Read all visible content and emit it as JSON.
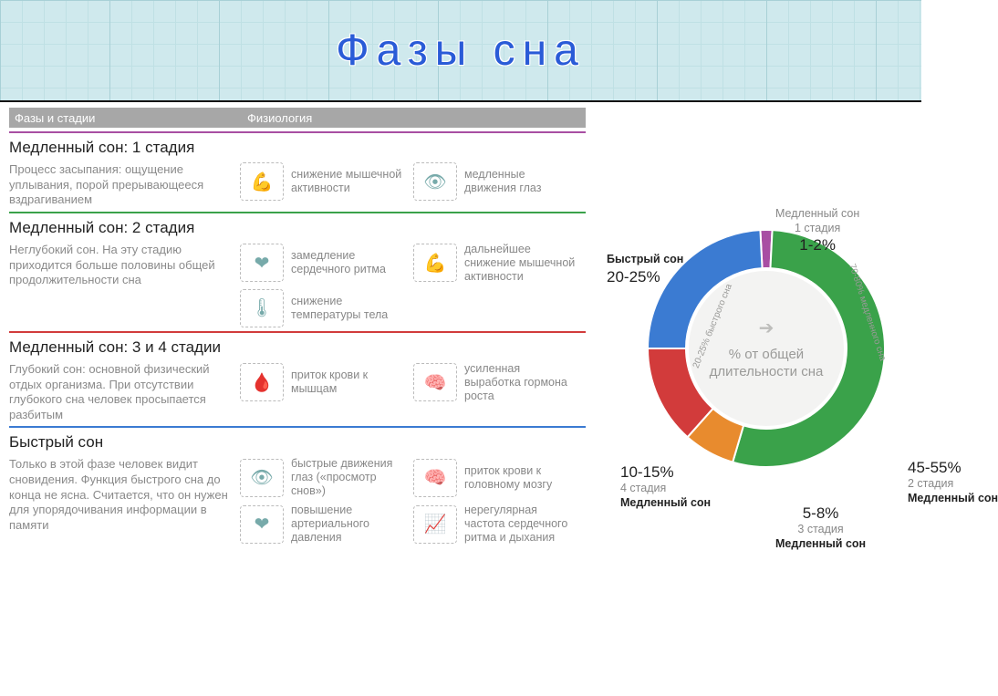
{
  "title": "Фазы сна",
  "headers": {
    "col1": "Фазы и стадии",
    "col2": "Физиология"
  },
  "stages": [
    {
      "title": "Медленный сон: 1 стадия",
      "rule_color": "#a84ea3",
      "desc": "Процесс засыпания: ощущение уплывания, порой прерывающееся вздрагиванием",
      "phys": [
        [
          {
            "icon": "💪",
            "text": "снижение мышечной активности"
          },
          {
            "icon": "👁",
            "text": "медленные движения глаз"
          }
        ]
      ]
    },
    {
      "title": "Медленный сон: 2 стадия",
      "rule_color": "#3aa24a",
      "desc": "Неглубокий сон. На эту стадию приходится больше половины общей продолжительности сна",
      "phys": [
        [
          {
            "icon": "❤",
            "text": "замедление сердечного ритма"
          },
          {
            "icon": "💪",
            "text": "дальнейшее снижение мышечной активности"
          }
        ],
        [
          {
            "icon": "🌡",
            "text": "снижение температуры тела"
          }
        ]
      ]
    },
    {
      "title": "Медленный сон: 3 и 4 стадии",
      "rule_color": "#d23b3b",
      "desc": "Глубокий сон: основной физический отдых организма. При отсутствии глубокого сна человек просыпается разбитым",
      "phys": [
        [
          {
            "icon": "🩸",
            "text": "приток крови к мышцам"
          },
          {
            "icon": "🧠",
            "text": "усиленная выработка гормона роста"
          }
        ]
      ]
    },
    {
      "title": "Быстрый сон",
      "rule_color": "#3b7bd2",
      "desc": "Только в этой фазе человек видит сновидения. Функция быстрого сна до конца не ясна. Считается, что он нужен для упорядочивания информации в памяти",
      "phys": [
        [
          {
            "icon": "👁",
            "text": "быстрые движения глаз («просмотр снов»)"
          },
          {
            "icon": "🧠",
            "text": "приток крови к головному мозгу"
          }
        ],
        [
          {
            "icon": "❤",
            "text": "повышение артериального давления"
          },
          {
            "icon": "📈",
            "text": "нерегулярная частота сердечного ритма и дыхания"
          }
        ]
      ]
    }
  ],
  "donut": {
    "center_text": "% от общей длительности сна",
    "inner_ring_text_left": "20-25% быстрого сна",
    "inner_ring_text_right": "70-80% медленного сна",
    "background": "#f3f3f2",
    "slices": [
      {
        "label": "Медленный сон",
        "sub": "1 стадия",
        "pct": "1-2%",
        "value": 1.5,
        "color": "#a84ea3"
      },
      {
        "label": "Медленный сон",
        "sub": "2 стадия",
        "pct": "45-55%",
        "value": 50,
        "color": "#3aa24a"
      },
      {
        "label": "Медленный сон",
        "sub": "3 стадия",
        "pct": "5-8%",
        "value": 6.5,
        "color": "#e88b2e"
      },
      {
        "label": "Медленный сон",
        "sub": "4 стадия",
        "pct": "10-15%",
        "value": 12.5,
        "color": "#d23b3b"
      },
      {
        "label": "Быстрый сон",
        "sub": "",
        "pct": "20-25%",
        "value": 22.5,
        "color": "#3b7bd2"
      }
    ]
  },
  "colors": {
    "banner_bg": "#cfe9ed",
    "banner_text": "#2a5bd7",
    "header_bg": "#a7a7a7",
    "desc_text": "#8a8a8a"
  }
}
